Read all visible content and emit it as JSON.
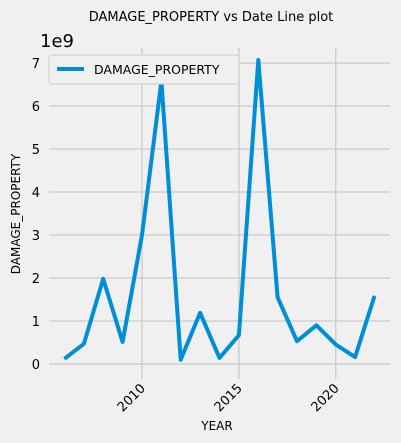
{
  "chart_data": {
    "type": "line",
    "title": "DAMAGE_PROPERTY vs Date Line plot",
    "xlabel": "YEAR",
    "ylabel": "DAMAGE_PROPERTY",
    "y_multiplier": "1e9",
    "xlim": [
      2005.2,
      2022.8
    ],
    "ylim": [
      -0.35,
      7.35
    ],
    "x_ticks": [
      2010,
      2015,
      2020
    ],
    "x_tick_labels": [
      "2010",
      "2015",
      "2020"
    ],
    "y_ticks": [
      0,
      1,
      2,
      3,
      4,
      5,
      6,
      7
    ],
    "y_tick_labels": [
      "0",
      "1",
      "2",
      "3",
      "4",
      "5",
      "6",
      "7"
    ],
    "grid": true,
    "legend_position": "top-left",
    "series": [
      {
        "name": "DAMAGE_PROPERTY",
        "color": "#008fd5",
        "x": [
          2006,
          2007,
          2008,
          2009,
          2010,
          2011,
          2012,
          2013,
          2014,
          2015,
          2016,
          2017,
          2018,
          2019,
          2020,
          2021,
          2022
        ],
        "y": [
          0.12,
          0.47,
          1.98,
          0.51,
          3.0,
          6.58,
          0.1,
          1.19,
          0.14,
          0.67,
          7.07,
          1.55,
          0.53,
          0.9,
          0.45,
          0.16,
          1.58
        ]
      }
    ]
  }
}
